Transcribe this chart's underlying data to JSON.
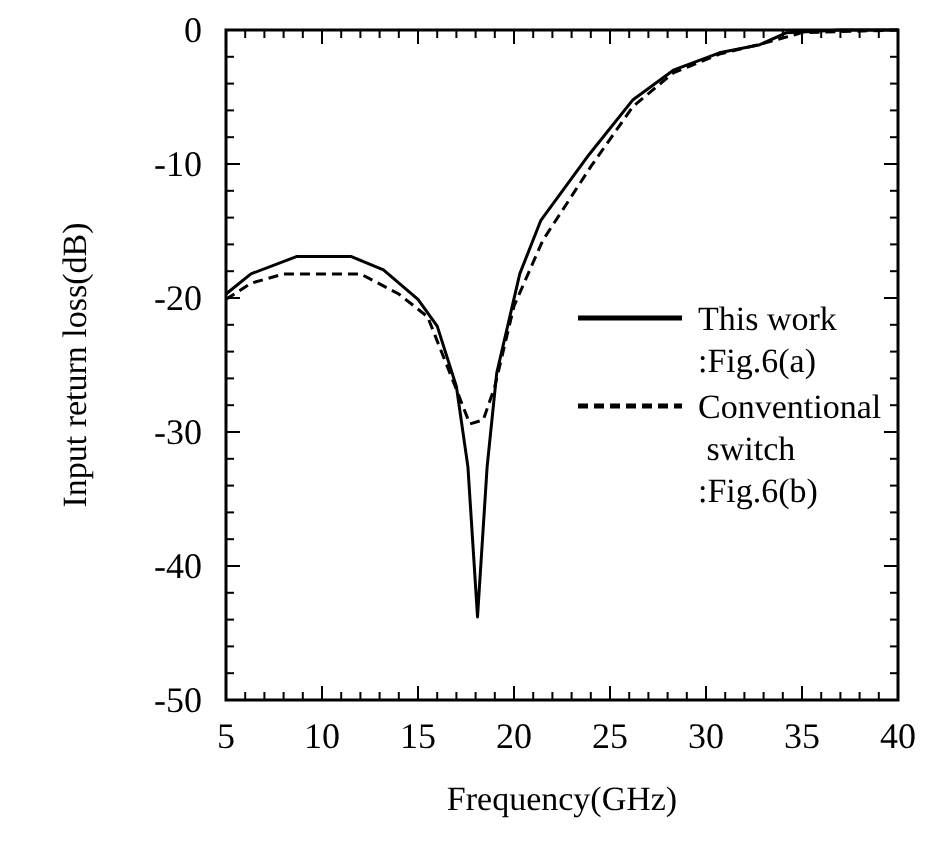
{
  "chart_data": {
    "type": "line",
    "xlabel": "Frequency(GHz)",
    "ylabel": "Input return loss(dB)",
    "xlim": [
      5,
      40
    ],
    "ylim": [
      -50,
      0
    ],
    "xticks": [
      5,
      {
        "value": 6,
        "label": null
      },
      {
        "value": 7,
        "label": null
      },
      {
        "value": 8,
        "label": null
      },
      {
        "value": 9,
        "label": null
      },
      10,
      {
        "value": 11,
        "label": null
      },
      {
        "value": 12,
        "label": null
      },
      {
        "value": 13,
        "label": null
      },
      {
        "value": 14,
        "label": null
      },
      15,
      {
        "value": 16,
        "label": null
      },
      {
        "value": 17,
        "label": null
      },
      {
        "value": 18,
        "label": null
      },
      {
        "value": 19,
        "label": null
      },
      20,
      {
        "value": 21,
        "label": null
      },
      {
        "value": 22,
        "label": null
      },
      {
        "value": 23,
        "label": null
      },
      {
        "value": 24,
        "label": null
      },
      25,
      {
        "value": 26,
        "label": null
      },
      {
        "value": 27,
        "label": null
      },
      {
        "value": 28,
        "label": null
      },
      {
        "value": 29,
        "label": null
      },
      30,
      {
        "value": 31,
        "label": null
      },
      {
        "value": 32,
        "label": null
      },
      {
        "value": 33,
        "label": null
      },
      {
        "value": 34,
        "label": null
      },
      35,
      {
        "value": 36,
        "label": null
      },
      {
        "value": 37,
        "label": null
      },
      {
        "value": 38,
        "label": null
      },
      {
        "value": 39,
        "label": null
      },
      40
    ],
    "yticks": [
      -50,
      {
        "value": -48,
        "label": null
      },
      {
        "value": -46,
        "label": null
      },
      {
        "value": -44,
        "label": null
      },
      {
        "value": -42,
        "label": null
      },
      -40,
      {
        "value": -38,
        "label": null
      },
      {
        "value": -36,
        "label": null
      },
      {
        "value": -34,
        "label": null
      },
      {
        "value": -32,
        "label": null
      },
      -30,
      {
        "value": -28,
        "label": null
      },
      {
        "value": -26,
        "label": null
      },
      {
        "value": -24,
        "label": null
      },
      {
        "value": -22,
        "label": null
      },
      -20,
      {
        "value": -18,
        "label": null
      },
      {
        "value": -16,
        "label": null
      },
      {
        "value": -14,
        "label": null
      },
      {
        "value": -12,
        "label": null
      },
      -10,
      {
        "value": -8,
        "label": null
      },
      {
        "value": -6,
        "label": null
      },
      {
        "value": -4,
        "label": null
      },
      {
        "value": -2,
        "label": null
      },
      0
    ],
    "legend": "right",
    "grid": false,
    "series": [
      {
        "name": "This work\n:Fig.6(a)",
        "color": "#000000",
        "line_style": "solid",
        "x": [
          5,
          6.3,
          8.7,
          11.5,
          13.2,
          15,
          16,
          17,
          17.6,
          18.1,
          18.6,
          19.1,
          20.3,
          21.4,
          23.8,
          26.2,
          28.3,
          30.7,
          32.8,
          34.2,
          37,
          40
        ],
        "values": [
          -19.7,
          -18.2,
          -16.9,
          -16.9,
          -17.9,
          -20.1,
          -22.1,
          -26.6,
          -32.6,
          -43.8,
          -32.6,
          -25.6,
          -18.2,
          -14.2,
          -9.5,
          -5.2,
          -3,
          -1.7,
          -1.1,
          -0.2,
          0,
          0
        ]
      },
      {
        "name": "Conventional\n switch\n:Fig.6(b)",
        "color": "#000000",
        "line_style": "dashed",
        "x": [
          5,
          6.3,
          8,
          12,
          14,
          15.5,
          16.8,
          17.7,
          18.4,
          19,
          20,
          21.5,
          24,
          26.2,
          28.3,
          30.7,
          33,
          35,
          40
        ],
        "values": [
          -20.1,
          -18.9,
          -18.2,
          -18.2,
          -19.7,
          -21.4,
          -26.1,
          -29.4,
          -29.1,
          -26.6,
          -20.6,
          -15.7,
          -10.2,
          -5.7,
          -3.2,
          -1.8,
          -1,
          -0.2,
          0
        ]
      }
    ]
  }
}
